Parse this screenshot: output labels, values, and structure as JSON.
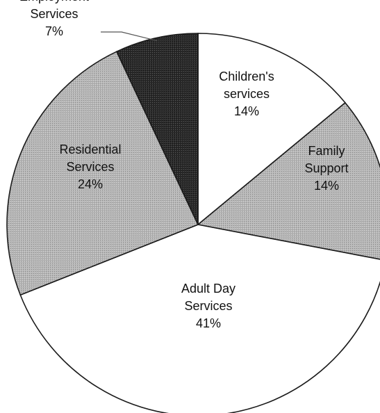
{
  "chart_data": {
    "type": "pie",
    "title": "",
    "start_angle_deg": 0,
    "direction": "clockwise",
    "legend": "none",
    "slices": [
      {
        "label_lines": [
          "Children's",
          "services"
        ],
        "value": 14,
        "value_label": "14%",
        "fill": "#ffffff",
        "pattern": "none"
      },
      {
        "label_lines": [
          "Family",
          "Support"
        ],
        "value": 14,
        "value_label": "14%",
        "fill": "#b4b4b4",
        "pattern": "dots-light"
      },
      {
        "label_lines": [
          "Adult Day",
          "Services"
        ],
        "value": 41,
        "value_label": "41%",
        "fill": "#ffffff",
        "pattern": "none"
      },
      {
        "label_lines": [
          "Residential",
          "Services"
        ],
        "value": 24,
        "value_label": "24%",
        "fill": "#b4b4b4",
        "pattern": "dots-light"
      },
      {
        "label_lines": [
          "Employment",
          "Services"
        ],
        "value": 7,
        "value_label": "7%",
        "fill": "#2a2a2a",
        "pattern": "dots-dark"
      }
    ]
  }
}
